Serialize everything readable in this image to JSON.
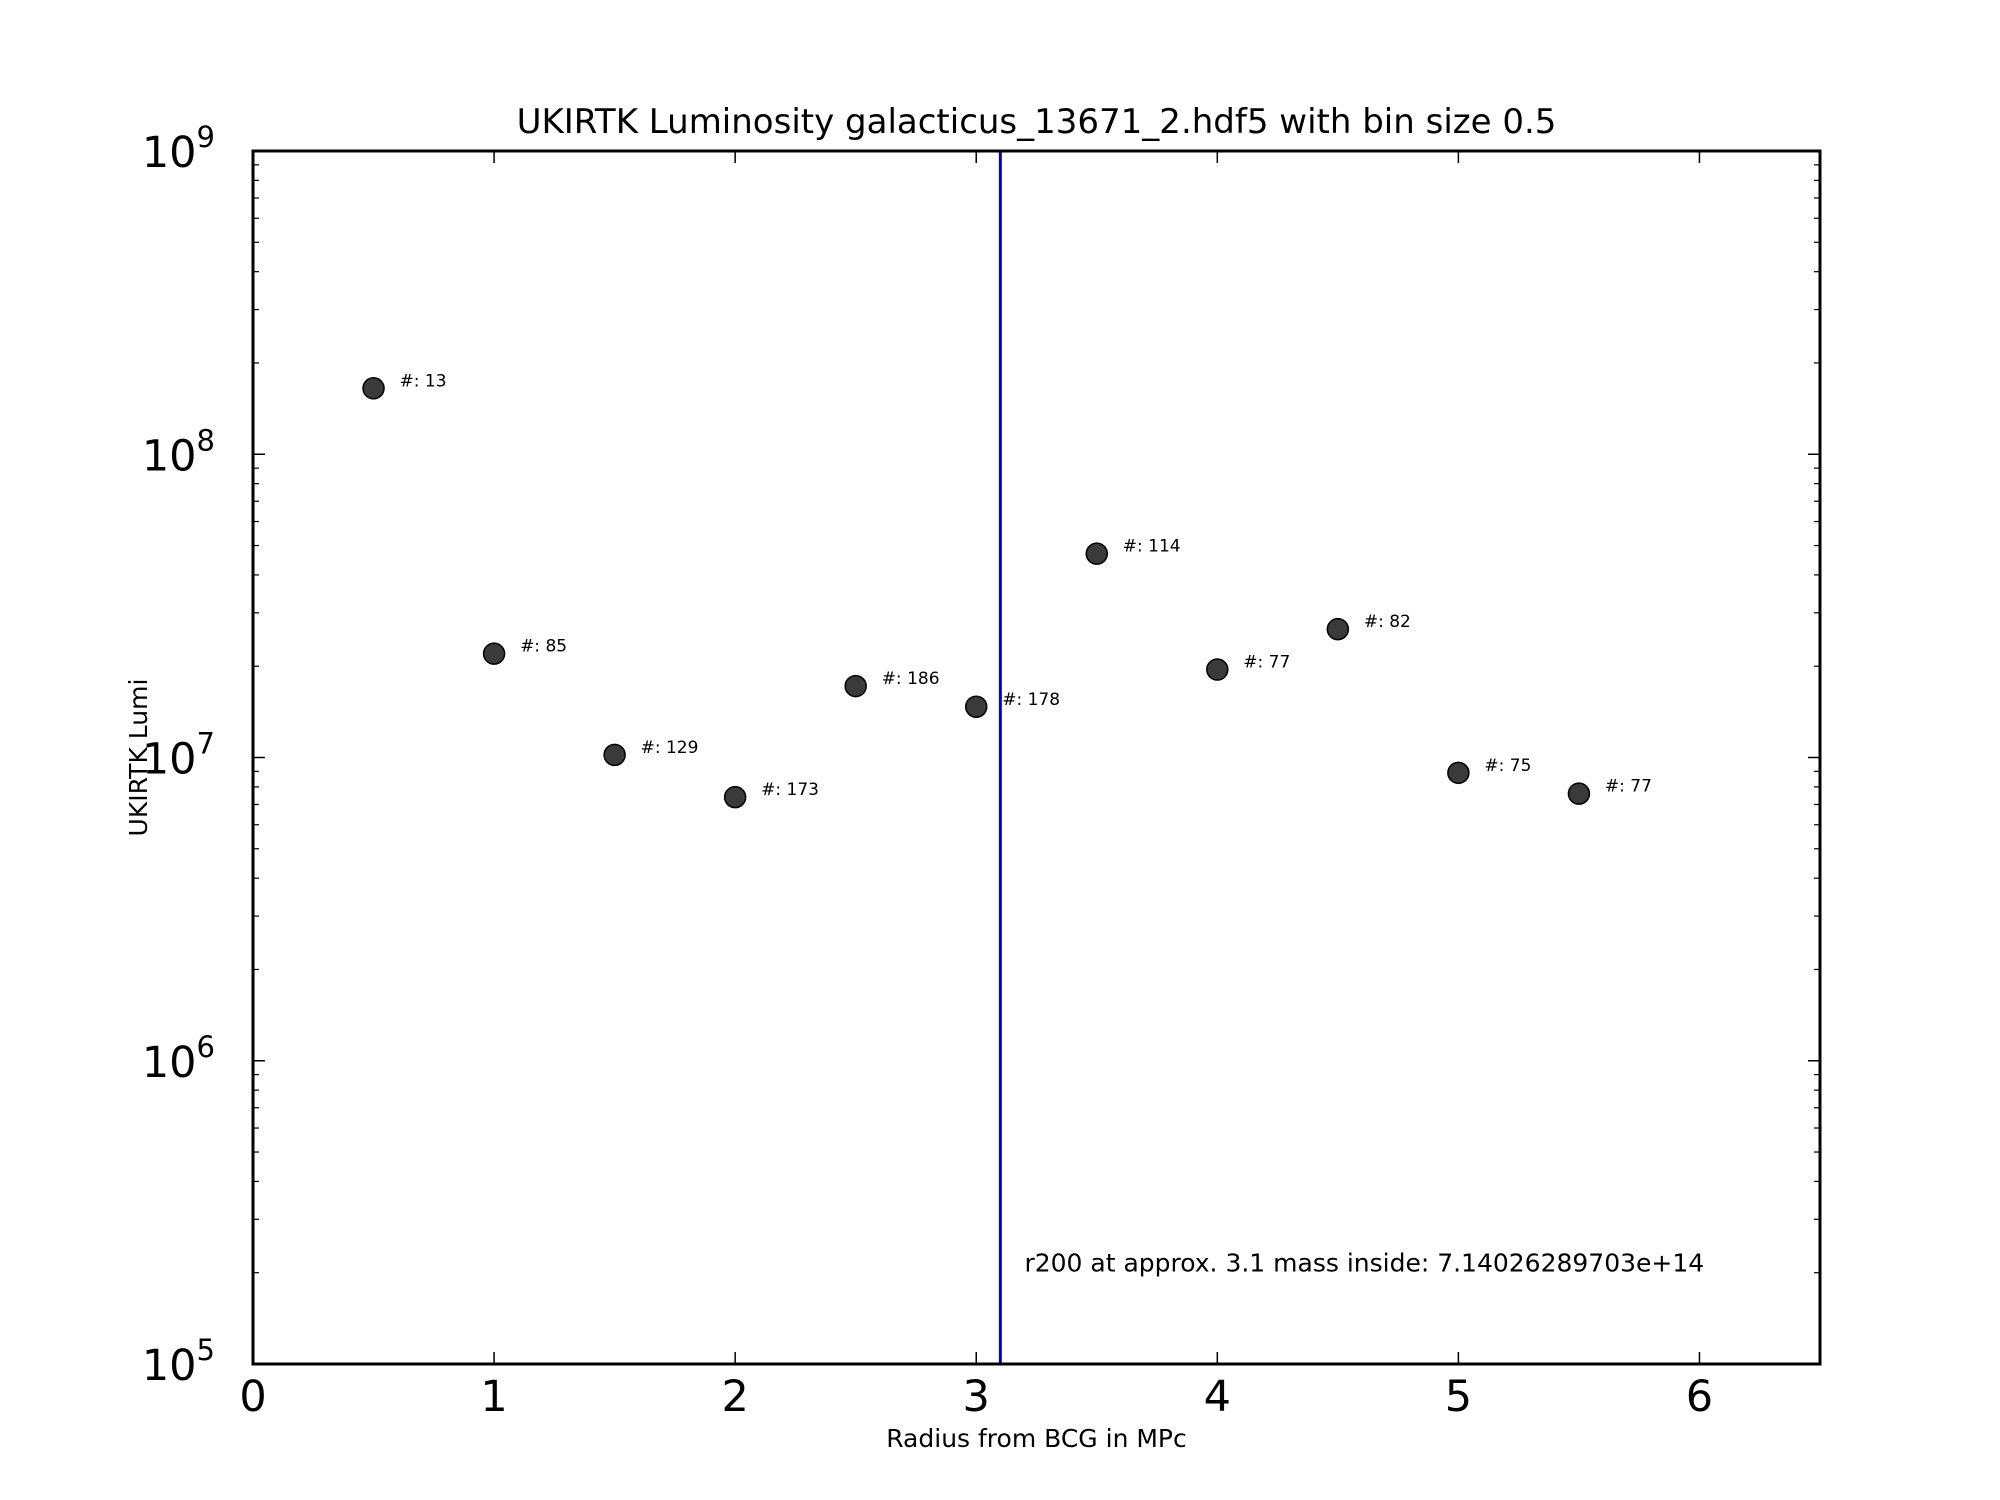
{
  "chart_data": {
    "type": "scatter",
    "title": "UKIRTK Luminosity galacticus_13671_2.hdf5 with bin size 0.5",
    "xlabel": "Radius from BCG in MPc",
    "ylabel": "UKIRTK Lumi",
    "xlim": [
      0,
      6.5
    ],
    "ylim": [
      100000,
      1000000000
    ],
    "yscale": "log",
    "x_ticks": [
      "0",
      "1",
      "2",
      "3",
      "4",
      "5",
      "6"
    ],
    "y_ticks": [
      {
        "base": "10",
        "exp": "5",
        "value": 100000
      },
      {
        "base": "10",
        "exp": "6",
        "value": 1000000
      },
      {
        "base": "10",
        "exp": "7",
        "value": 10000000
      },
      {
        "base": "10",
        "exp": "8",
        "value": 100000000
      },
      {
        "base": "10",
        "exp": "9",
        "value": 1000000000
      }
    ],
    "series": [
      {
        "marker_color": "#3a3a3a",
        "points": [
          {
            "x": 0.5,
            "y": 165000000,
            "label": "#: 13"
          },
          {
            "x": 1.0,
            "y": 22000000,
            "label": "#: 85"
          },
          {
            "x": 1.5,
            "y": 10200000,
            "label": "#: 129"
          },
          {
            "x": 2.0,
            "y": 7400000,
            "label": "#: 173"
          },
          {
            "x": 2.5,
            "y": 17200000,
            "label": "#: 186"
          },
          {
            "x": 3.0,
            "y": 14700000,
            "label": "#: 178"
          },
          {
            "x": 3.5,
            "y": 47000000,
            "label": "#: 114"
          },
          {
            "x": 4.0,
            "y": 19500000,
            "label": "#: 77"
          },
          {
            "x": 4.5,
            "y": 26500000,
            "label": "#: 82"
          },
          {
            "x": 5.0,
            "y": 8900000,
            "label": "#: 75"
          },
          {
            "x": 5.5,
            "y": 7600000,
            "label": "#: 77"
          }
        ]
      }
    ],
    "vline": {
      "x": 3.1,
      "color": "#0000cc"
    },
    "annotation": {
      "text": "r200 at approx. 3.1 mass inside: 7.14026289703e+14",
      "x": 3.2,
      "y": 200000
    },
    "grid": false
  }
}
